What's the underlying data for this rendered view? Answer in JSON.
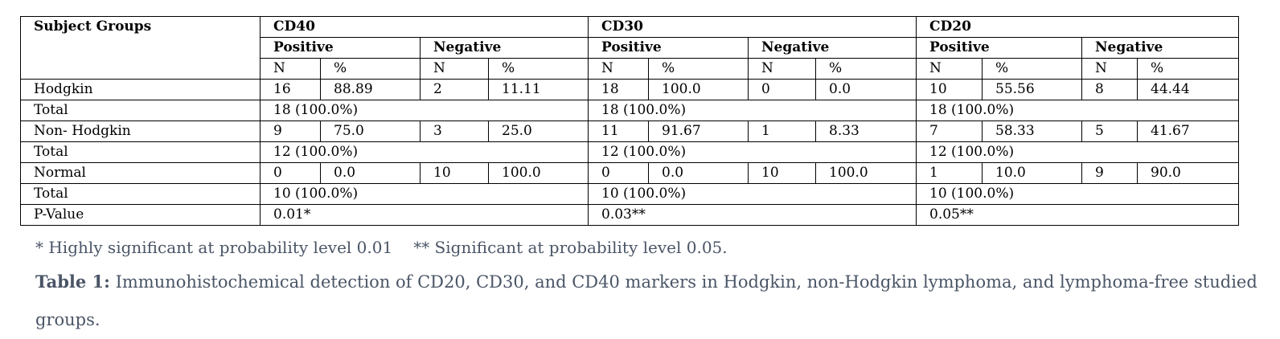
{
  "table": {
    "subject_header": "Subject Groups",
    "markers": [
      "CD40",
      "CD30",
      "CD20"
    ],
    "sub_headers": [
      "Positive",
      "Negative"
    ],
    "col_headers": [
      "N",
      "%"
    ],
    "rows": [
      {
        "label": "Hodgkin",
        "cells": [
          "16",
          "88.89",
          "2",
          "11.11",
          "18",
          "100.0",
          "0",
          "0.0",
          "10",
          "55.56",
          "8",
          "44.44"
        ]
      },
      {
        "label": "Total",
        "totals": [
          "18 (100.0%)",
          "18 (100.0%)",
          "18 (100.0%)"
        ]
      },
      {
        "label": "Non- Hodgkin",
        "cells": [
          "9",
          "75.0",
          "3",
          "25.0",
          "11",
          "91.67",
          "1",
          "8.33",
          "7",
          "58.33",
          "5",
          "41.67"
        ]
      },
      {
        "label": "Total",
        "totals": [
          "12 (100.0%)",
          "12 (100.0%)",
          "12 (100.0%)"
        ]
      },
      {
        "label": "Normal",
        "cells": [
          "0",
          "0.0",
          "10",
          "100.0",
          "0",
          "0.0",
          "10",
          "100.0",
          "1",
          "10.0",
          "9",
          "90.0"
        ]
      },
      {
        "label": "Total",
        "totals": [
          "10 (100.0%)",
          "10 (100.0%)",
          "10 (100.0%)"
        ]
      },
      {
        "label": "P-Value",
        "totals": [
          "0.01*",
          "0.03**",
          "0.05**"
        ]
      }
    ]
  },
  "footnotes": {
    "highly": "* Highly significant at probability level 0.01",
    "significant": "** Significant at probability level 0.05."
  },
  "caption": {
    "label": "Table 1:",
    "text": " Immunohistochemical detection of CD20, CD30, and CD40 markers in Hodgkin, non-Hodgkin lymphoma, and lymphoma-free studied groups."
  }
}
